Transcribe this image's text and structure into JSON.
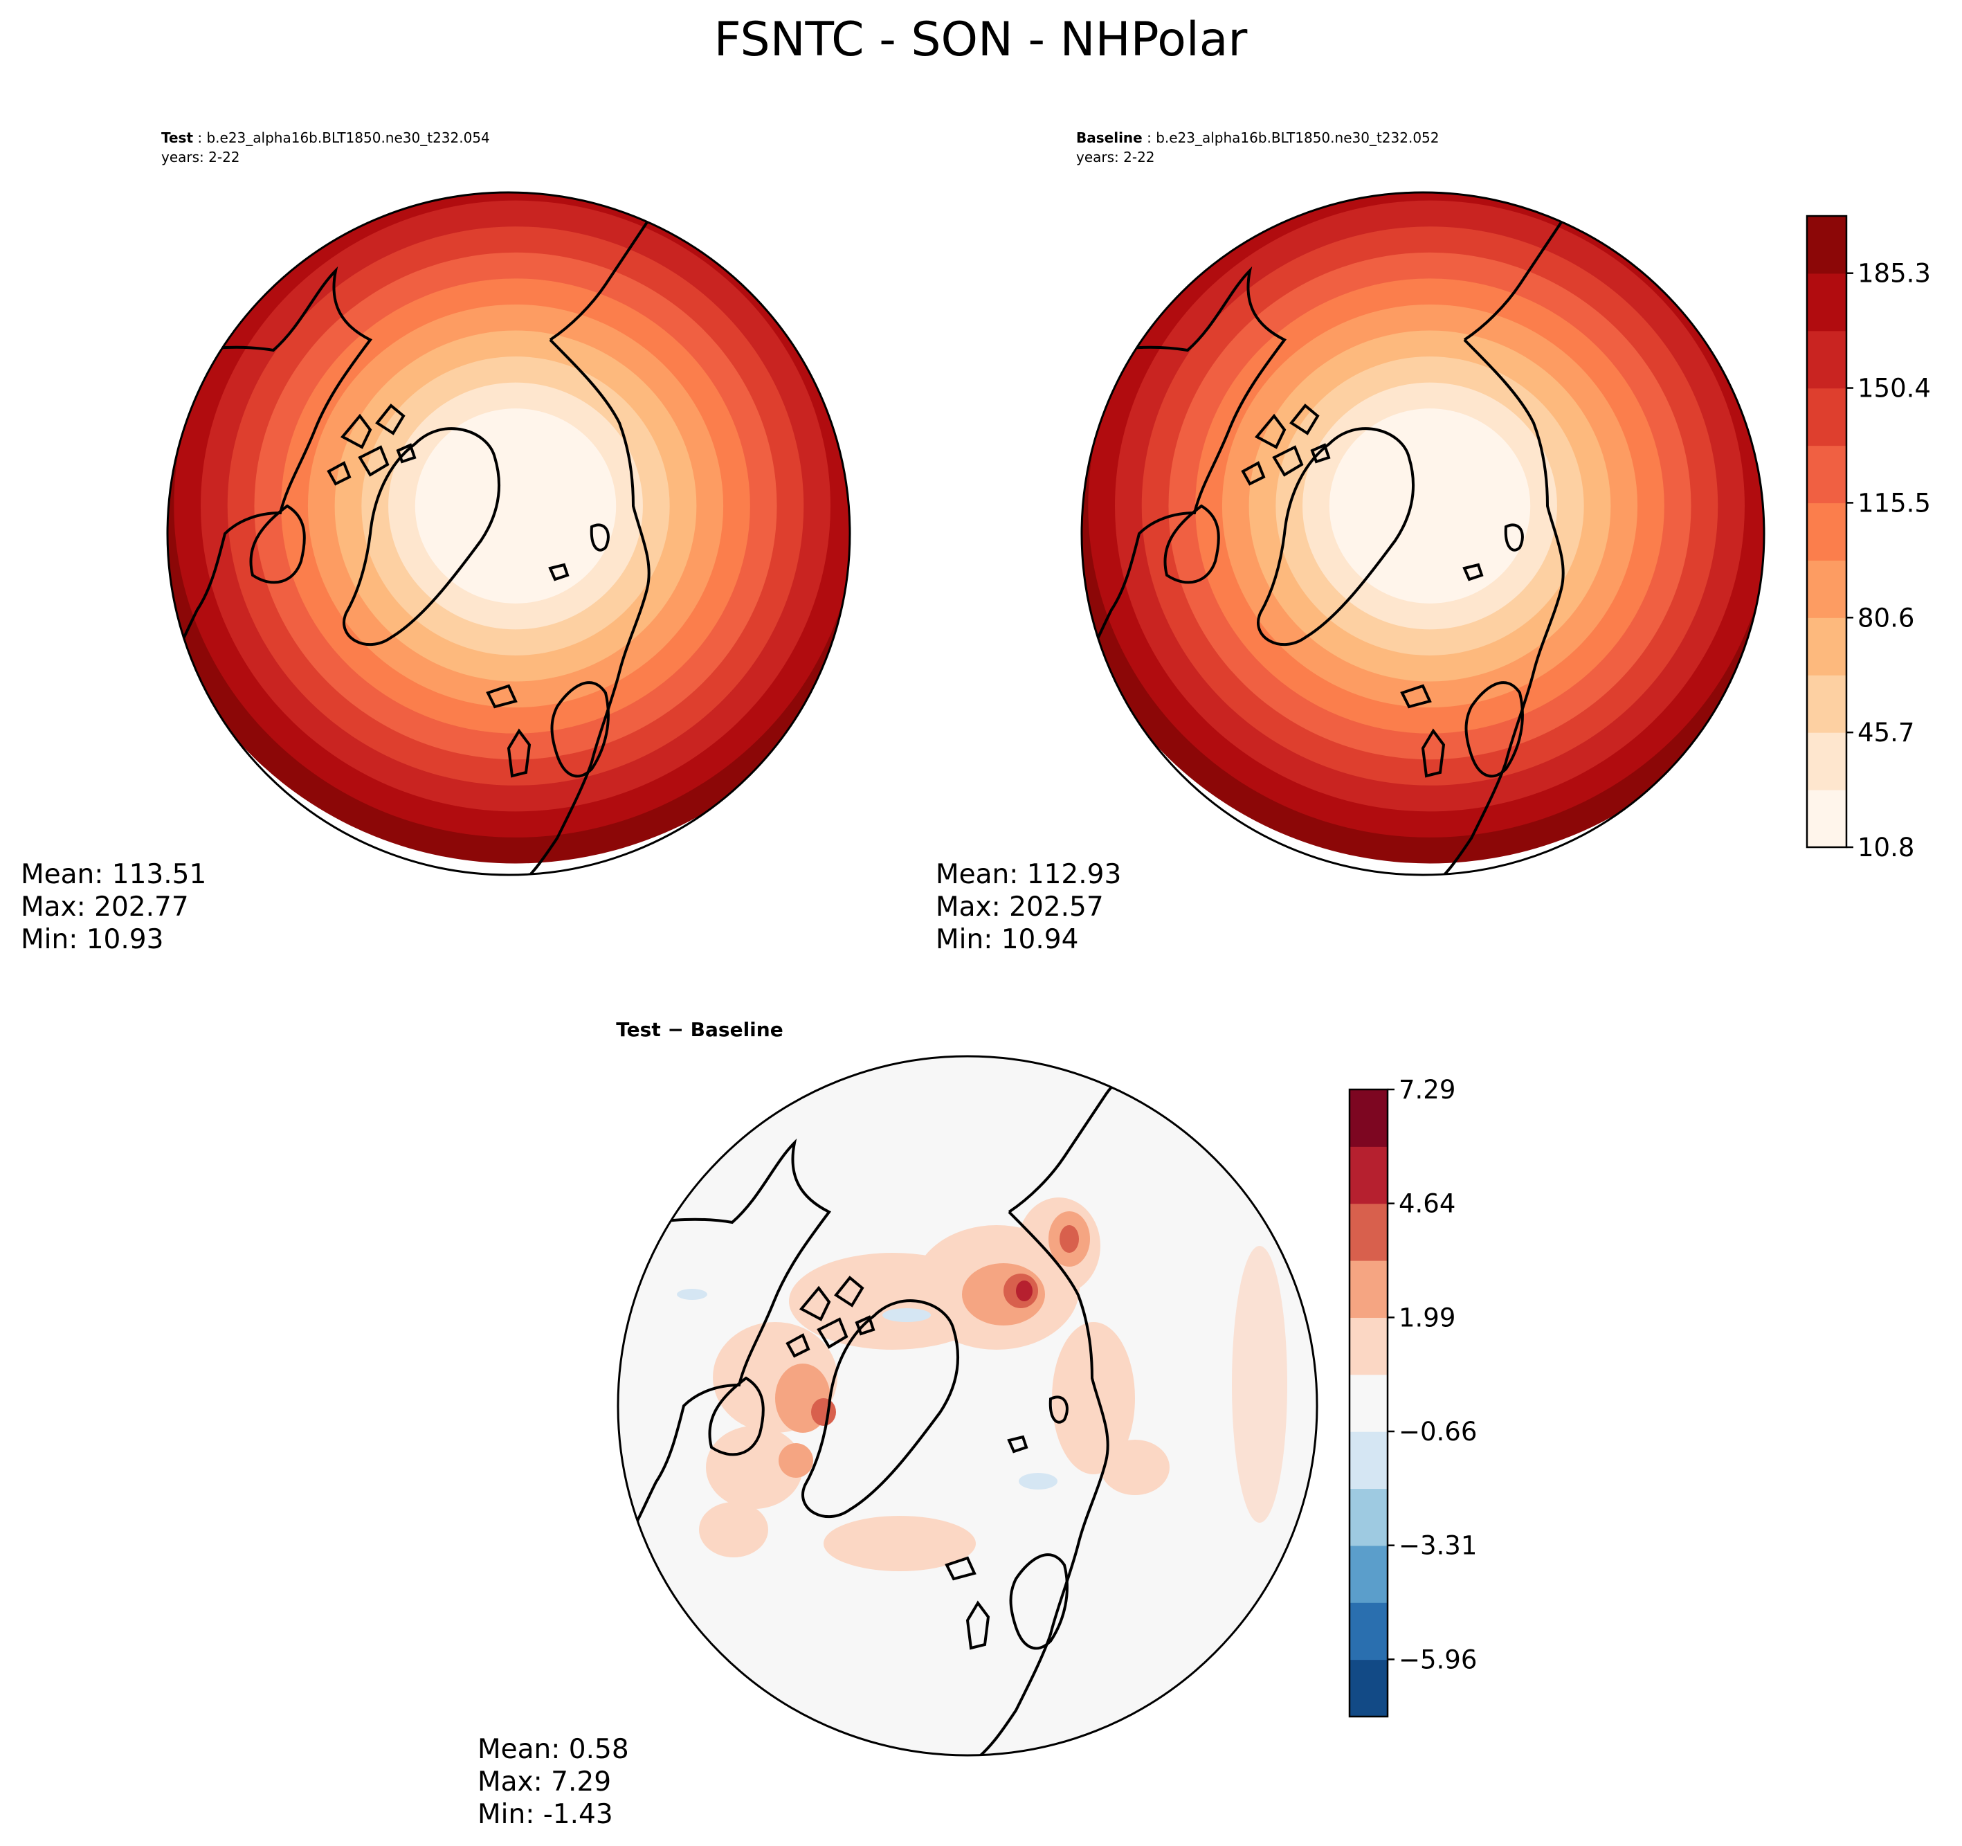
{
  "title": "FSNTC - SON - NHPolar",
  "chart_data": [
    {
      "type": "contour-map",
      "panel": "test",
      "projection": "North Polar Stereographic",
      "title_label": "Test",
      "title_case": "b.e23_alpha16b.BLT1850.ne30_t232.054",
      "years": "years: 2-22",
      "stats": {
        "mean": "Mean: 113.51",
        "max": "Max: 202.77",
        "min": "Min: 10.93"
      }
    },
    {
      "type": "contour-map",
      "panel": "baseline",
      "projection": "North Polar Stereographic",
      "title_label": "Baseline",
      "title_case": "b.e23_alpha16b.BLT1850.ne30_t232.052",
      "years": "years: 2-22",
      "stats": {
        "mean": "Mean: 112.93",
        "max": "Max: 202.57",
        "min": "Min: 10.94"
      }
    },
    {
      "type": "contour-map",
      "panel": "difference",
      "projection": "North Polar Stereographic",
      "title": "Test − Baseline",
      "stats": {
        "mean": "Mean:  0.58",
        "max": "Max:  7.29",
        "min": "Min: -1.43"
      }
    }
  ],
  "colorbars": {
    "main": {
      "range": [
        10.8,
        202.7
      ],
      "ticks": [
        10.8,
        45.7,
        80.6,
        115.5,
        150.4,
        185.3
      ],
      "tick_labels": [
        "10.8",
        "45.7",
        "80.6",
        "115.5",
        "150.4",
        "185.3"
      ],
      "colors": [
        "#fff5eb",
        "#fee6ce",
        "#fdd0a2",
        "#fdb97d",
        "#fd9c62",
        "#fb7e4c",
        "#f06042",
        "#de3f2e",
        "#c92421",
        "#b10c0f",
        "#8c0707"
      ]
    },
    "diff": {
      "range": [
        -7.29,
        7.29
      ],
      "ticks": [
        -5.96,
        -3.31,
        -0.66,
        1.99,
        4.64,
        7.29
      ],
      "tick_labels": [
        "−5.96",
        "−3.31",
        "−0.66",
        "1.99",
        "4.64",
        "7.29"
      ],
      "colors": [
        "#124a86",
        "#2a6faf",
        "#5b9ecb",
        "#9ecae1",
        "#d5e6f3",
        "#f7f7f7",
        "#fbd7c4",
        "#f5a582",
        "#d8604d",
        "#b6202f",
        "#7d0621"
      ]
    }
  }
}
